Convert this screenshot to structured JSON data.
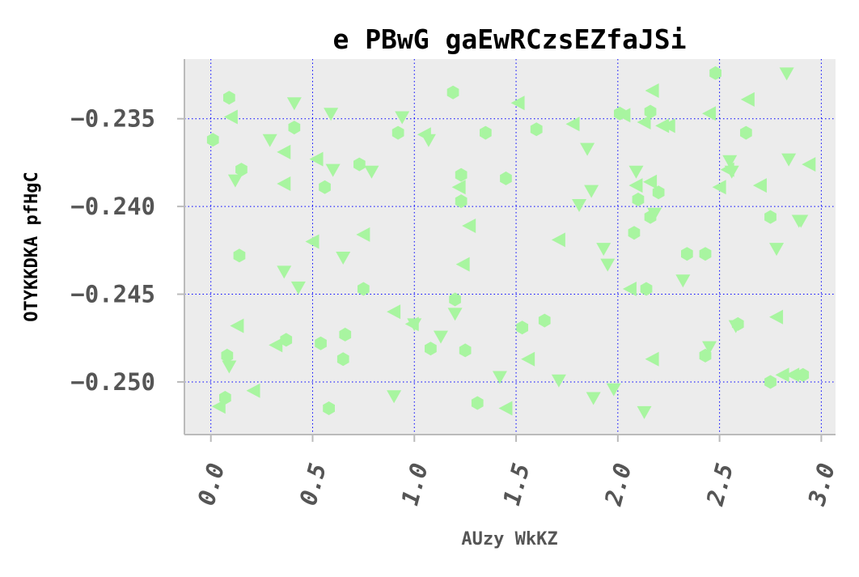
{
  "chart_data": {
    "type": "scatter",
    "title": "e PBwG gaEwRCzsEZfaJSi",
    "xlabel": "AUzy WkKZ",
    "ylabel": "OTYKKDKA pfHgC",
    "xlim": [
      -0.13,
      3.07
    ],
    "ylim": [
      -0.253,
      -0.2316
    ],
    "xticks": [
      0.0,
      0.5,
      1.0,
      1.5,
      2.0,
      2.5,
      3.0
    ],
    "xtick_labels": [
      "0.0",
      "0.5",
      "1.0",
      "1.5",
      "2.0",
      "2.5",
      "3.0"
    ],
    "yticks": [
      -0.235,
      -0.24,
      -0.245,
      -0.25
    ],
    "ytick_labels": [
      "−0.235",
      "−0.240",
      "−0.245",
      "−0.250"
    ],
    "grid": true,
    "colors": {
      "marker": "#a8f5a0",
      "grid": "#0000ff",
      "plot_background": "#ececec",
      "axis": "#bbbbbb"
    },
    "series": [
      {
        "marker": "hexagon",
        "x": [
          0.01,
          0.09,
          0.15,
          0.14,
          0.08,
          0.07,
          0.41,
          0.37,
          0.56,
          0.54,
          0.58,
          0.65,
          0.66,
          0.75,
          0.73,
          0.92,
          1.08,
          1.19,
          1.2,
          1.23,
          1.23,
          1.25,
          1.31,
          1.35,
          1.45,
          1.53,
          1.6,
          1.64,
          2.01,
          2.08,
          2.1,
          2.16,
          2.16,
          2.2,
          2.14,
          2.34,
          2.43,
          2.43,
          2.48,
          2.59,
          2.63,
          2.75,
          2.75,
          2.91
        ],
        "y": [
          -0.2362,
          -0.2338,
          -0.2379,
          -0.2428,
          -0.2485,
          -0.2509,
          -0.2355,
          -0.2476,
          -0.2389,
          -0.2478,
          -0.2515,
          -0.2487,
          -0.2473,
          -0.2447,
          -0.2376,
          -0.2358,
          -0.2481,
          -0.2335,
          -0.2453,
          -0.2382,
          -0.2397,
          -0.2482,
          -0.2512,
          -0.2358,
          -0.2384,
          -0.2469,
          -0.2356,
          -0.2465,
          -0.2347,
          -0.2415,
          -0.2396,
          -0.2346,
          -0.2406,
          -0.2392,
          -0.2447,
          -0.2427,
          -0.2427,
          -0.2485,
          -0.2324,
          -0.2467,
          -0.2358,
          -0.2406,
          -0.25,
          -0.2496
        ]
      },
      {
        "marker": "triangle-down",
        "x": [
          0.09,
          0.12,
          0.29,
          0.36,
          0.41,
          0.43,
          0.59,
          0.6,
          0.65,
          0.79,
          0.9,
          0.94,
          1.0,
          1.07,
          1.13,
          1.2,
          1.42,
          1.71,
          1.81,
          1.85,
          1.87,
          1.88,
          1.93,
          1.95,
          1.98,
          2.09,
          2.13,
          2.18,
          2.32,
          2.45,
          2.55,
          2.56,
          2.58,
          2.78,
          2.83,
          2.84,
          2.89,
          2.9
        ],
        "y": [
          -0.2491,
          -0.2385,
          -0.2362,
          -0.2437,
          -0.2341,
          -0.2446,
          -0.2347,
          -0.2379,
          -0.2429,
          -0.238,
          -0.2508,
          -0.2349,
          -0.2467,
          -0.2362,
          -0.2474,
          -0.2461,
          -0.2497,
          -0.2499,
          -0.2399,
          -0.2367,
          -0.2391,
          -0.2509,
          -0.2424,
          -0.2433,
          -0.2504,
          -0.238,
          -0.2517,
          -0.2404,
          -0.2442,
          -0.248,
          -0.2374,
          -0.238,
          -0.2468,
          -0.2424,
          -0.2324,
          -0.2373,
          -0.2408,
          -0.2408
        ]
      },
      {
        "marker": "triangle-left",
        "x": [
          0.04,
          0.1,
          0.13,
          0.21,
          0.36,
          0.36,
          0.32,
          0.52,
          0.5,
          0.75,
          0.9,
          0.99,
          1.05,
          1.22,
          1.24,
          1.27,
          1.45,
          1.51,
          1.56,
          1.71,
          1.78,
          2.03,
          2.06,
          2.09,
          2.13,
          2.17,
          2.16,
          2.17,
          2.22,
          2.25,
          2.45,
          2.5,
          2.54,
          2.64,
          2.7,
          2.78,
          2.81,
          2.86,
          2.94
        ],
        "y": [
          -0.2514,
          -0.2349,
          -0.2468,
          -0.2505,
          -0.2369,
          -0.2387,
          -0.2479,
          -0.2373,
          -0.242,
          -0.2416,
          -0.246,
          -0.2467,
          -0.2359,
          -0.2389,
          -0.2433,
          -0.2411,
          -0.2515,
          -0.2341,
          -0.2487,
          -0.2419,
          -0.2353,
          -0.2348,
          -0.2447,
          -0.2388,
          -0.2352,
          -0.2334,
          -0.2386,
          -0.2487,
          -0.2354,
          -0.2354,
          -0.2347,
          -0.2389,
          -0.2379,
          -0.2339,
          -0.2388,
          -0.2463,
          -0.2496,
          -0.2496,
          -0.2376
        ]
      }
    ]
  }
}
